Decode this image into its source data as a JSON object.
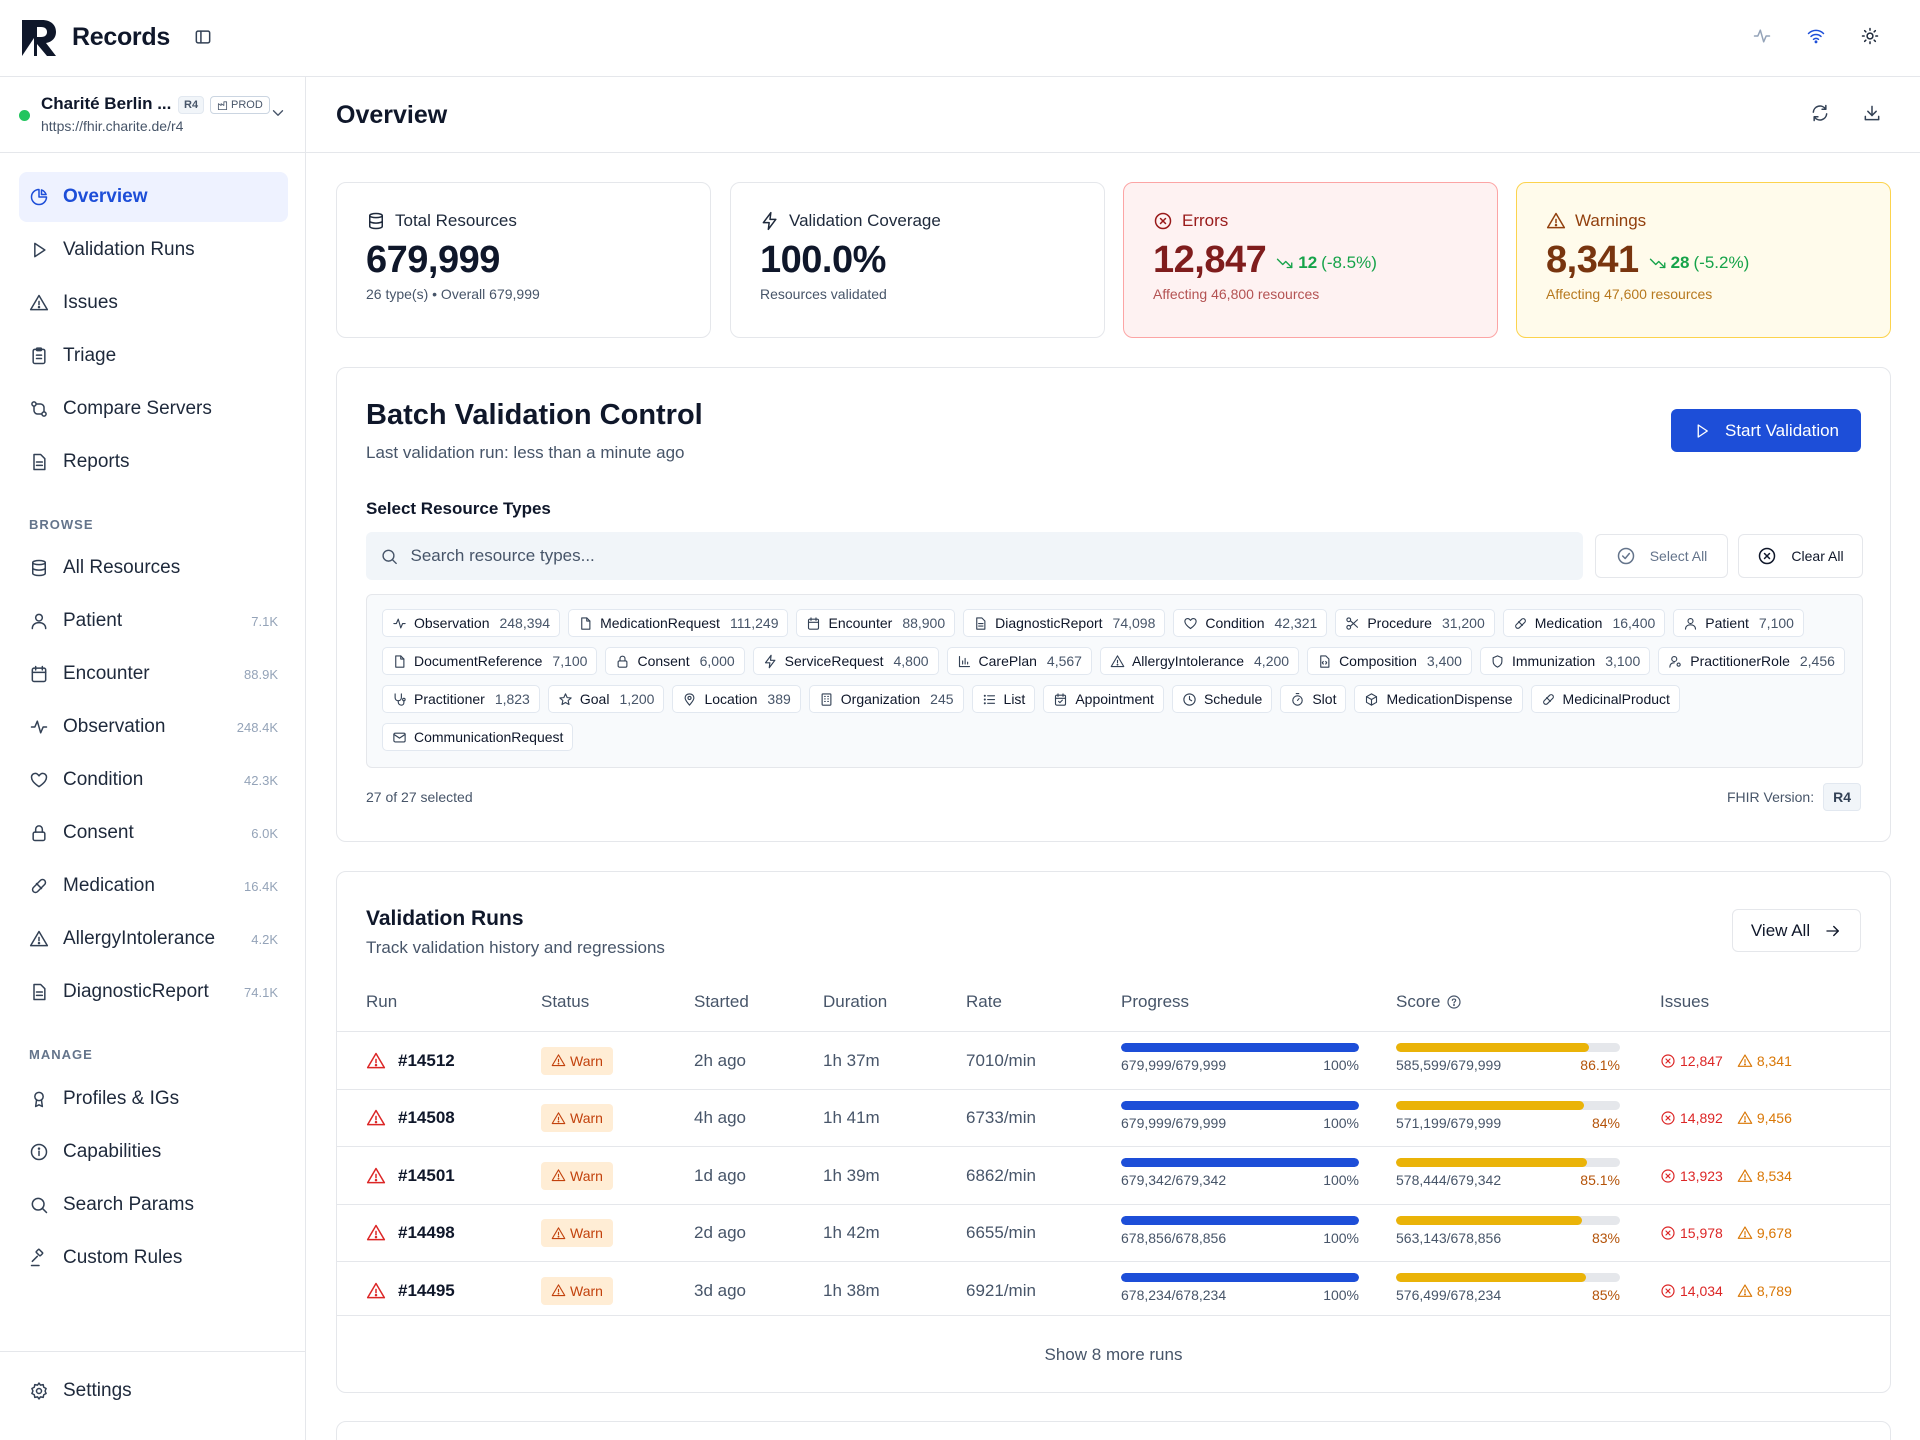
{
  "app": {
    "title": "Records"
  },
  "server": {
    "name": "Charité Berlin ...",
    "version": "R4",
    "env": "PROD",
    "url": "https://fhir.charite.de/r4",
    "status_color": "#22c55e"
  },
  "page": {
    "title": "Overview"
  },
  "nav": {
    "main": [
      {
        "label": "Overview",
        "icon": "pie-chart-icon",
        "active": true
      },
      {
        "label": "Validation Runs",
        "icon": "play-icon"
      },
      {
        "label": "Issues",
        "icon": "alert-triangle-icon"
      },
      {
        "label": "Triage",
        "icon": "clipboard-icon"
      },
      {
        "label": "Compare Servers",
        "icon": "git-compare-icon"
      },
      {
        "label": "Reports",
        "icon": "file-text-icon"
      }
    ],
    "browse_title": "BROWSE",
    "browse": [
      {
        "label": "All Resources",
        "icon": "database-icon",
        "count": ""
      },
      {
        "label": "Patient",
        "icon": "user-icon",
        "count": "7.1K"
      },
      {
        "label": "Encounter",
        "icon": "calendar-icon",
        "count": "88.9K"
      },
      {
        "label": "Observation",
        "icon": "activity-icon",
        "count": "248.4K"
      },
      {
        "label": "Condition",
        "icon": "heart-icon",
        "count": "42.3K"
      },
      {
        "label": "Consent",
        "icon": "lock-icon",
        "count": "6.0K"
      },
      {
        "label": "Medication",
        "icon": "pill-icon",
        "count": "16.4K"
      },
      {
        "label": "AllergyIntolerance",
        "icon": "alert-triangle-icon",
        "count": "4.2K"
      },
      {
        "label": "DiagnosticReport",
        "icon": "file-text-icon",
        "count": "74.1K"
      }
    ],
    "manage_title": "MANAGE",
    "manage": [
      {
        "label": "Profiles & IGs",
        "icon": "award-icon"
      },
      {
        "label": "Capabilities",
        "icon": "info-icon"
      },
      {
        "label": "Search Params",
        "icon": "search-icon"
      },
      {
        "label": "Custom Rules",
        "icon": "gavel-icon"
      }
    ],
    "settings": "Settings"
  },
  "stats": {
    "total": {
      "label": "Total Resources",
      "value": "679,999",
      "sub": "26 type(s) • Overall 679,999"
    },
    "coverage": {
      "label": "Validation Coverage",
      "value": "100.0%",
      "sub": "Resources validated"
    },
    "errors": {
      "label": "Errors",
      "value": "12,847",
      "delta": "12",
      "delta_pct": "(-8.5%)",
      "sub": "Affecting 46,800 resources"
    },
    "warnings": {
      "label": "Warnings",
      "value": "8,341",
      "delta": "28",
      "delta_pct": "(-5.2%)",
      "sub": "Affecting 47,600 resources"
    }
  },
  "batch": {
    "title": "Batch Validation Control",
    "subtitle": "Last validation run: less than a minute ago",
    "start_label": "Start Validation",
    "select_label": "Select Resource Types",
    "search_placeholder": "Search resource types...",
    "select_all": "Select All",
    "clear_all": "Clear All",
    "types": [
      {
        "name": "Observation",
        "count": "248,394",
        "icon": "activity-icon"
      },
      {
        "name": "MedicationRequest",
        "count": "111,249",
        "icon": "file-icon"
      },
      {
        "name": "Encounter",
        "count": "88,900",
        "icon": "calendar-icon"
      },
      {
        "name": "DiagnosticReport",
        "count": "74,098",
        "icon": "file-text-icon"
      },
      {
        "name": "Condition",
        "count": "42,321",
        "icon": "heart-icon"
      },
      {
        "name": "Procedure",
        "count": "31,200",
        "icon": "scissors-icon"
      },
      {
        "name": "Medication",
        "count": "16,400",
        "icon": "pill-icon"
      },
      {
        "name": "Patient",
        "count": "7,100",
        "icon": "user-icon"
      },
      {
        "name": "DocumentReference",
        "count": "7,100",
        "icon": "file-icon"
      },
      {
        "name": "Consent",
        "count": "6,000",
        "icon": "lock-icon"
      },
      {
        "name": "ServiceRequest",
        "count": "4,800",
        "icon": "zap-icon"
      },
      {
        "name": "CarePlan",
        "count": "4,567",
        "icon": "bar-chart-icon"
      },
      {
        "name": "AllergyIntolerance",
        "count": "4,200",
        "icon": "alert-triangle-icon"
      },
      {
        "name": "Composition",
        "count": "3,400",
        "icon": "file-code-icon"
      },
      {
        "name": "Immunization",
        "count": "3,100",
        "icon": "shield-icon"
      },
      {
        "name": "PractitionerRole",
        "count": "2,456",
        "icon": "user-cog-icon"
      },
      {
        "name": "Practitioner",
        "count": "1,823",
        "icon": "stethoscope-icon"
      },
      {
        "name": "Goal",
        "count": "1,200",
        "icon": "star-icon"
      },
      {
        "name": "Location",
        "count": "389",
        "icon": "map-pin-icon"
      },
      {
        "name": "Organization",
        "count": "245",
        "icon": "building-icon"
      },
      {
        "name": "List",
        "count": "",
        "icon": "list-icon"
      },
      {
        "name": "Appointment",
        "count": "",
        "icon": "calendar-check-icon"
      },
      {
        "name": "Schedule",
        "count": "",
        "icon": "clock-icon"
      },
      {
        "name": "Slot",
        "count": "",
        "icon": "timer-icon"
      },
      {
        "name": "MedicationDispense",
        "count": "",
        "icon": "package-icon"
      },
      {
        "name": "MedicinalProduct",
        "count": "",
        "icon": "pill-icon"
      },
      {
        "name": "CommunicationRequest",
        "count": "",
        "icon": "mail-icon"
      }
    ],
    "selected": "27 of 27 selected",
    "fhir_label": "FHIR Version:",
    "fhir_value": "R4"
  },
  "runs": {
    "title": "Validation Runs",
    "subtitle": "Track validation history and regressions",
    "view_all": "View All",
    "headers": {
      "run": "Run",
      "status": "Status",
      "started": "Started",
      "duration": "Duration",
      "rate": "Rate",
      "progress": "Progress",
      "score": "Score",
      "issues": "Issues"
    },
    "rows": [
      {
        "run": "#14512",
        "status": "Warn",
        "started": "2h ago",
        "duration": "1h 37m",
        "rate": "7010/min",
        "progress_text": "679,999/679,999",
        "progress_pct": "100%",
        "progress_value": 1.0,
        "score_text": "585,599/679,999",
        "score_pct": "86.1%",
        "score_value": 0.861,
        "errors": "12,847",
        "warnings": "8,341"
      },
      {
        "run": "#14508",
        "status": "Warn",
        "started": "4h ago",
        "duration": "1h 41m",
        "rate": "6733/min",
        "progress_text": "679,999/679,999",
        "progress_pct": "100%",
        "progress_value": 1.0,
        "score_text": "571,199/679,999",
        "score_pct": "84%",
        "score_value": 0.84,
        "errors": "14,892",
        "warnings": "9,456"
      },
      {
        "run": "#14501",
        "status": "Warn",
        "started": "1d ago",
        "duration": "1h 39m",
        "rate": "6862/min",
        "progress_text": "679,342/679,342",
        "progress_pct": "100%",
        "progress_value": 1.0,
        "score_text": "578,444/679,342",
        "score_pct": "85.1%",
        "score_value": 0.851,
        "errors": "13,923",
        "warnings": "8,534"
      },
      {
        "run": "#14498",
        "status": "Warn",
        "started": "2d ago",
        "duration": "1h 42m",
        "rate": "6655/min",
        "progress_text": "678,856/678,856",
        "progress_pct": "100%",
        "progress_value": 1.0,
        "score_text": "563,143/678,856",
        "score_pct": "83%",
        "score_value": 0.83,
        "errors": "15,978",
        "warnings": "9,678"
      },
      {
        "run": "#14495",
        "status": "Warn",
        "started": "3d ago",
        "duration": "1h 38m",
        "rate": "6921/min",
        "progress_text": "678,234/678,234",
        "progress_pct": "100%",
        "progress_value": 1.0,
        "score_text": "576,499/678,234",
        "score_pct": "85%",
        "score_value": 0.85,
        "errors": "14,034",
        "warnings": "8,789"
      }
    ],
    "show_more": "Show 8 more runs"
  },
  "colors": {
    "accent": "#1d4ed8",
    "progress": "#1d4ed8",
    "score": "#eab308",
    "error": "#dc2626",
    "warning": "#d97706"
  }
}
